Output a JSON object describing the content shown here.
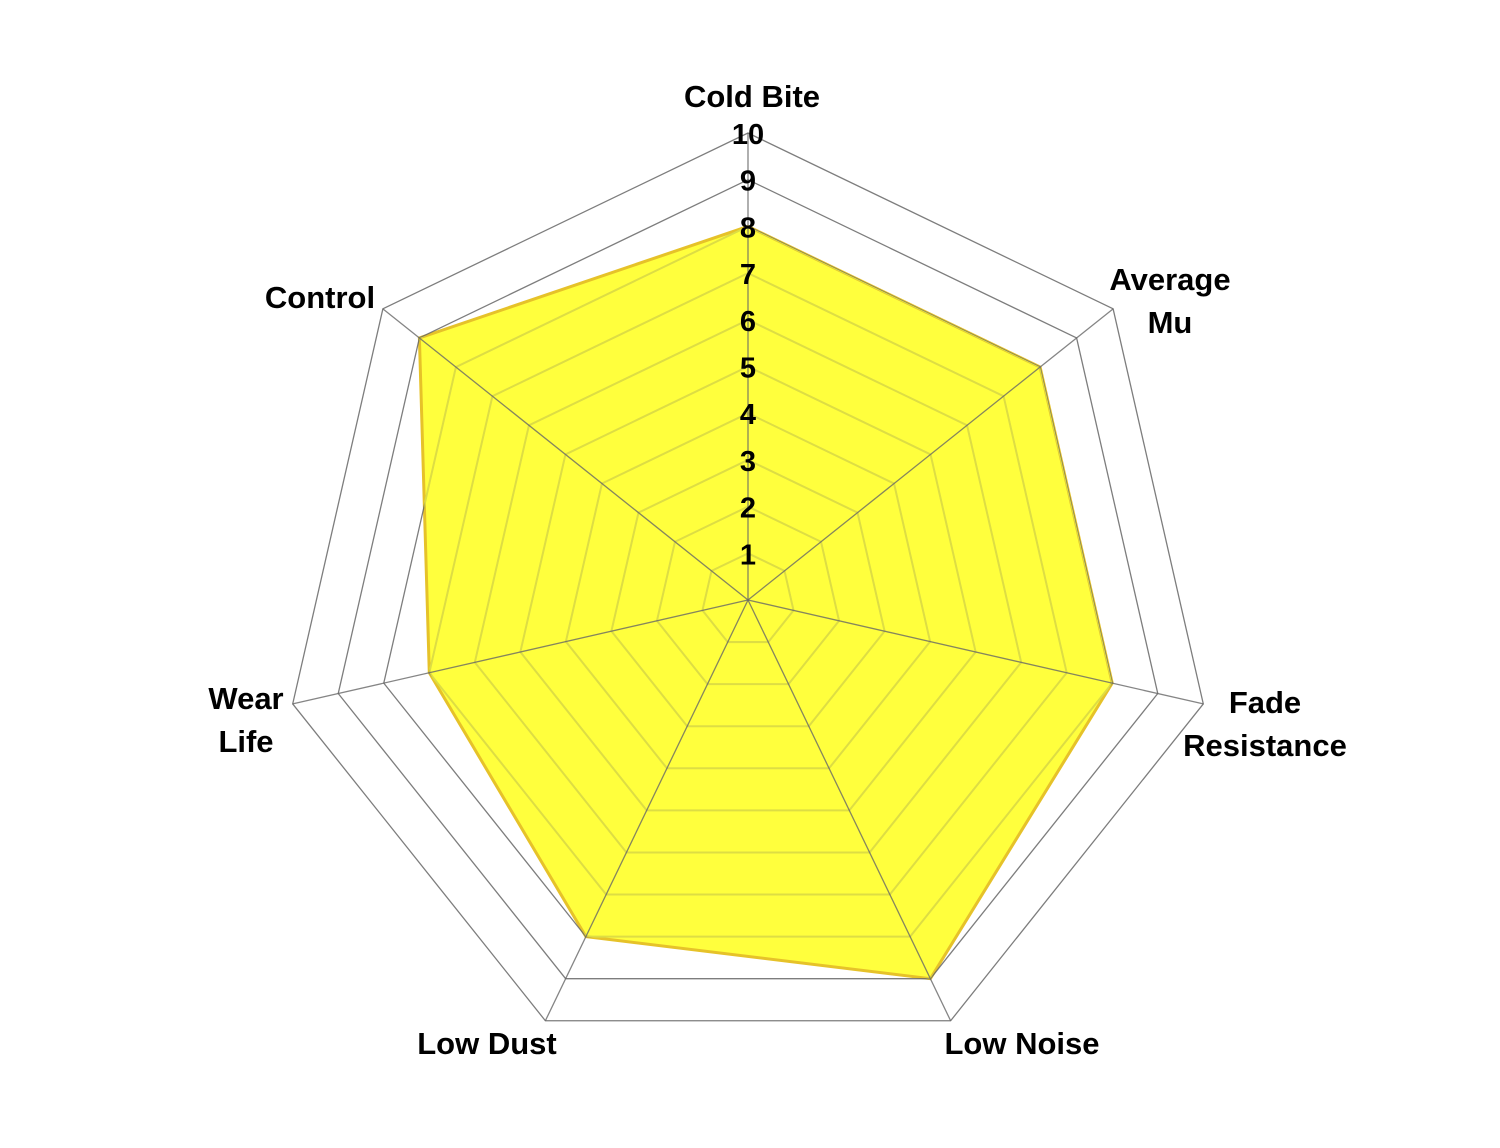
{
  "chart_data": {
    "type": "radar",
    "categories": [
      "Cold Bite",
      "Average Mu",
      "Fade Resistance",
      "Low Noise",
      "Low Dust",
      "Wear Life",
      "Control"
    ],
    "category_label_lines": [
      [
        "Cold Bite"
      ],
      [
        "Average",
        "Mu"
      ],
      [
        "Fade",
        "Resistance"
      ],
      [
        "Low Noise"
      ],
      [
        "Low Dust"
      ],
      [
        "Wear",
        "Life"
      ],
      [
        "Control"
      ]
    ],
    "series": [
      {
        "values": [
          8,
          8,
          8,
          9,
          8,
          7,
          9
        ],
        "fill_color": "#ffff33",
        "line_color": "#e6c229"
      }
    ],
    "rlim": [
      0,
      10
    ],
    "ticks": [
      "1",
      "2",
      "3",
      "4",
      "5",
      "6",
      "7",
      "8",
      "9",
      "10"
    ],
    "grid": true,
    "grid_color": "#666666",
    "inner_grid_color": "#dddd44"
  }
}
